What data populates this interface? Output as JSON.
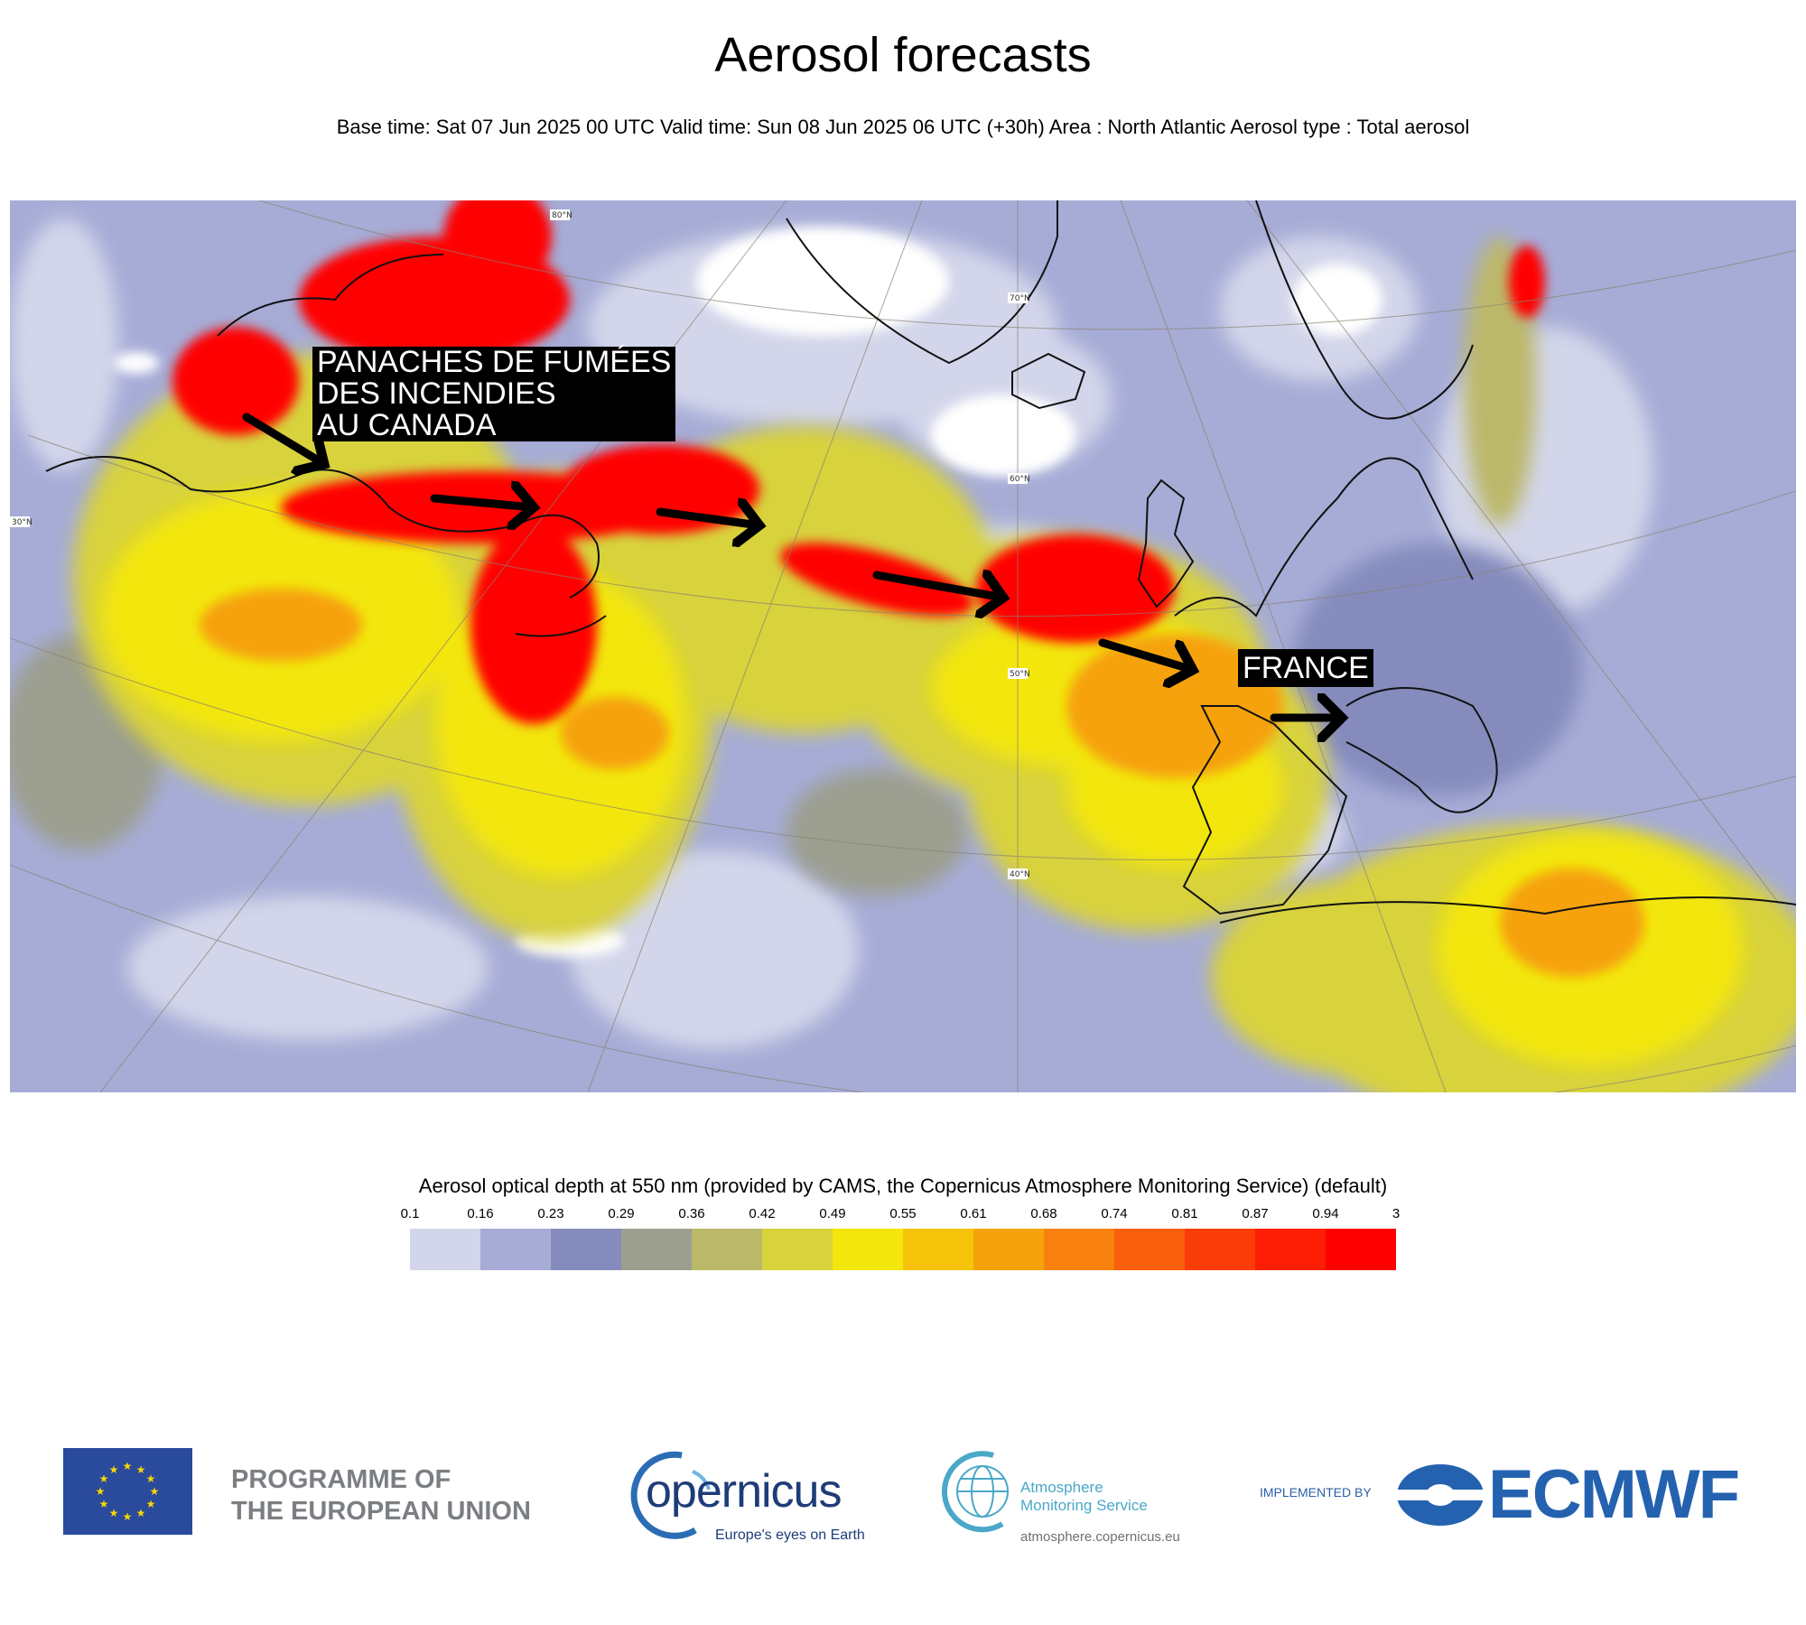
{
  "header": {
    "title": "Aerosol forecasts",
    "subtitle": "Base time: Sat 07 Jun 2025 00 UTC Valid time: Sun 08 Jun 2025 06 UTC (+30h) Area : North Atlantic Aerosol type : Total aerosol"
  },
  "map": {
    "area": "North Atlantic",
    "annotations": {
      "canada_label": [
        "PANACHES DE FUMÉES",
        "DES INCENDIES",
        "AU CANADA"
      ],
      "france_label": "FRANCE"
    },
    "latitude_labels": [
      "80°N",
      "70°N",
      "60°N",
      "50°N",
      "40°N",
      "30°N"
    ]
  },
  "legend": {
    "title": "Aerosol optical depth at 550 nm (provided by CAMS, the Copernicus Atmosphere Monitoring Service) (default)",
    "ticks": [
      "0.1",
      "0.16",
      "0.23",
      "0.29",
      "0.36",
      "0.42",
      "0.49",
      "0.55",
      "0.61",
      "0.68",
      "0.74",
      "0.81",
      "0.87",
      "0.94",
      "3"
    ],
    "colors": [
      "#d3d6ea",
      "#a6acd6",
      "#858cbd",
      "#9c9f8f",
      "#bcb86a",
      "#d8d23c",
      "#f2e60a",
      "#f5c40a",
      "#f6a20c",
      "#f8820d",
      "#fa5f0b",
      "#fb3d0a",
      "#fd1e05",
      "#ff0000"
    ]
  },
  "footer": {
    "eu_text": [
      "PROGRAMME OF",
      "THE EUROPEAN UNION"
    ],
    "copernicus_word": "opernicus",
    "copernicus_tagline": "Europe's eyes on Earth",
    "ams_name": [
      "Atmosphere",
      "Monitoring Service"
    ],
    "ams_url": "atmosphere.copernicus.eu",
    "implemented_by": "IMPLEMENTED BY",
    "ecmwf": "ECMWF"
  }
}
